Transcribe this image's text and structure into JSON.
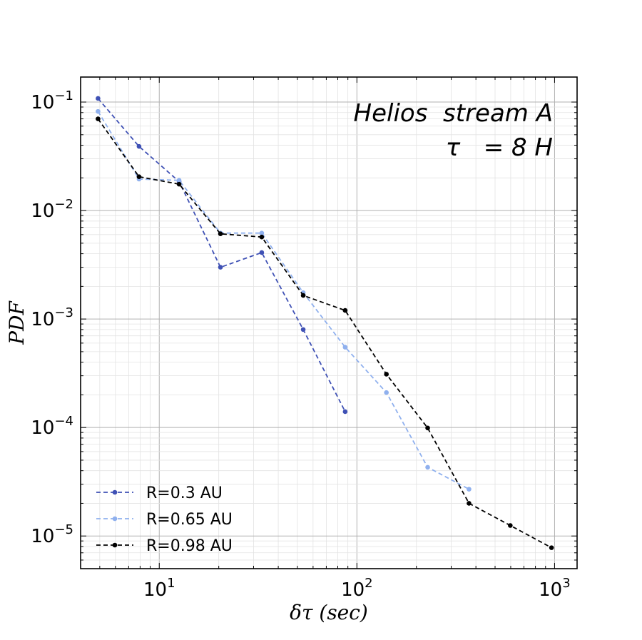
{
  "chart_data": {
    "type": "line",
    "xscale": "log",
    "yscale": "log",
    "xlim": [
      4,
      1300
    ],
    "ylim": [
      5e-06,
      0.17
    ],
    "grid": true,
    "xlabel": "δτ (sec)",
    "ylabel": "PDF",
    "x_ticks": [
      {
        "value": 10,
        "base": "10",
        "exp": "1"
      },
      {
        "value": 100,
        "base": "10",
        "exp": "2"
      },
      {
        "value": 1000,
        "base": "10",
        "exp": "3"
      }
    ],
    "y_ticks": [
      {
        "value": 0.1,
        "base": "10",
        "exp": "−1"
      },
      {
        "value": 0.01,
        "base": "10",
        "exp": "−2"
      },
      {
        "value": 0.001,
        "base": "10",
        "exp": "−3"
      },
      {
        "value": 0.0001,
        "base": "10",
        "exp": "−4"
      },
      {
        "value": 1e-05,
        "base": "10",
        "exp": "−5"
      }
    ],
    "annotations": [
      "Helios  stream A",
      "τ   = 8 H"
    ],
    "legend_position": "lower-left",
    "series": [
      {
        "name": "R=0.3 AU",
        "color": "#3f51b5",
        "x": [
          4.9,
          7.9,
          12.6,
          20.4,
          33.0,
          53.5,
          87.2
        ],
        "y": [
          0.108,
          0.039,
          0.0185,
          0.003,
          0.0041,
          0.0008,
          0.00014
        ]
      },
      {
        "name": "R=0.65 AU",
        "color": "#8fb0ee",
        "x": [
          4.9,
          7.9,
          12.6,
          20.4,
          33.0,
          53.5,
          87.2,
          141,
          228,
          369
        ],
        "y": [
          0.082,
          0.0195,
          0.019,
          0.0062,
          0.0062,
          0.00175,
          0.00055,
          0.00021,
          4.3e-05,
          2.7e-05
        ]
      },
      {
        "name": "R=0.98 AU",
        "color": "#000000",
        "x": [
          4.9,
          7.9,
          12.6,
          20.4,
          33.0,
          53.5,
          87.2,
          141,
          228,
          369,
          597,
          965
        ],
        "y": [
          0.07,
          0.0205,
          0.0175,
          0.0061,
          0.0057,
          0.00165,
          0.0012,
          0.00031,
          9.9e-05,
          2e-05,
          1.25e-05,
          7.8e-06
        ]
      }
    ]
  }
}
